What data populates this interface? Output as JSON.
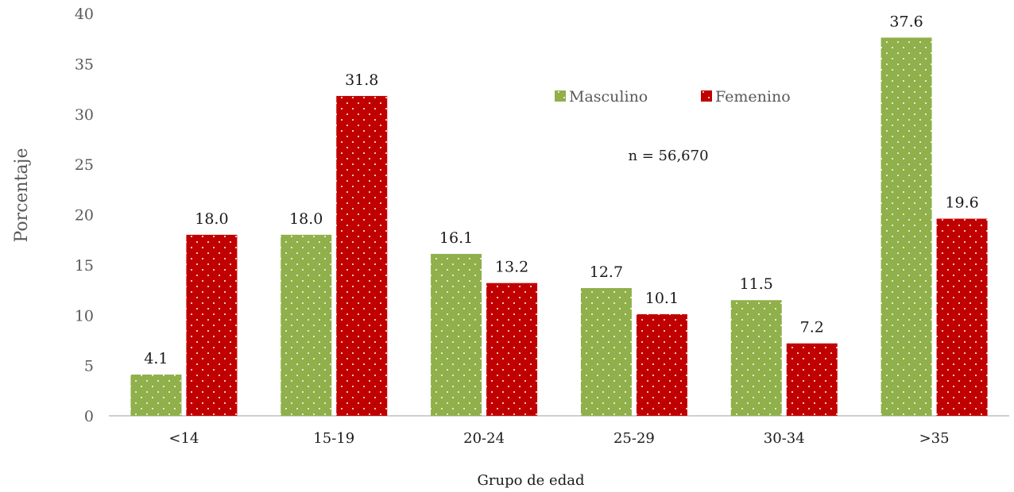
{
  "chart_data": {
    "type": "bar",
    "categories": [
      "<14",
      "15-19",
      "20-24",
      "25-29",
      "30-34",
      ">35"
    ],
    "series": [
      {
        "name": "Masculino",
        "values": [
          4.1,
          18.0,
          16.1,
          12.7,
          11.5,
          37.6
        ],
        "color": "#8fb04a"
      },
      {
        "name": "Femenino",
        "values": [
          18.0,
          31.8,
          13.2,
          10.1,
          7.2,
          19.6
        ],
        "color": "#c00000"
      }
    ],
    "data_labels": [
      [
        "4.1",
        "18.0",
        "16.1",
        "12.7",
        "11.5",
        "37.6"
      ],
      [
        "18.0",
        "31.8",
        "13.2",
        "10.1",
        "7.2",
        "19.6"
      ]
    ],
    "xlabel": "Grupo de edad",
    "ylabel": "Porcentaje",
    "ylim": [
      0,
      40
    ],
    "yticks": [
      "0",
      "5",
      "10",
      "15",
      "20",
      "25",
      "30",
      "35",
      "40"
    ],
    "annotation": "n = 56,670",
    "legend_position": "top-center",
    "grid": false,
    "bar_pattern": "dotted"
  }
}
